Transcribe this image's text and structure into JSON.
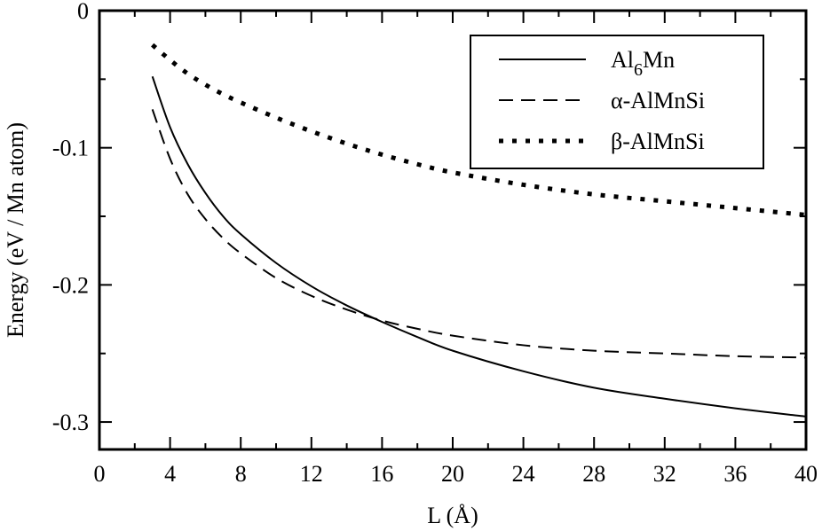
{
  "chart_data": {
    "type": "line",
    "xlabel": "L (Å)",
    "ylabel": "Energy (eV / Mn atom)",
    "xlim": [
      0,
      40
    ],
    "ylim": [
      -0.32,
      0
    ],
    "x_ticks": [
      0,
      4,
      8,
      12,
      16,
      20,
      24,
      28,
      32,
      36,
      40
    ],
    "x_tick_labels": [
      "0",
      "4",
      "8",
      "12",
      "16",
      "20",
      "24",
      "28",
      "32",
      "36",
      "40"
    ],
    "y_ticks": [
      0,
      -0.1,
      -0.2,
      -0.3
    ],
    "y_tick_labels": [
      "0",
      "-0.1",
      "-0.2",
      "-0.3"
    ],
    "x_minor_step": 2,
    "y_minor_step": 0.05,
    "grid": false,
    "legend_position": "top-right",
    "series": [
      {
        "name_parts": [
          "Al",
          "6",
          "Mn"
        ],
        "style": "solid",
        "x": [
          3,
          4,
          5,
          6,
          7,
          8,
          10,
          12,
          14,
          16,
          18,
          20,
          24,
          28,
          32,
          36,
          40
        ],
        "y": [
          -0.048,
          -0.085,
          -0.112,
          -0.133,
          -0.15,
          -0.163,
          -0.184,
          -0.201,
          -0.215,
          -0.227,
          -0.238,
          -0.248,
          -0.263,
          -0.275,
          -0.283,
          -0.29,
          -0.296
        ]
      },
      {
        "name_parts": [
          "α-AlMnSi"
        ],
        "style": "dashed",
        "x": [
          3,
          4,
          5,
          6,
          7,
          8,
          10,
          12,
          14,
          16,
          18,
          20,
          24,
          28,
          32,
          36,
          40
        ],
        "y": [
          -0.072,
          -0.108,
          -0.134,
          -0.152,
          -0.166,
          -0.177,
          -0.195,
          -0.208,
          -0.218,
          -0.226,
          -0.232,
          -0.237,
          -0.244,
          -0.248,
          -0.25,
          -0.252,
          -0.253
        ]
      },
      {
        "name_parts": [
          "β-AlMnSi"
        ],
        "style": "dotted",
        "x": [
          3,
          4,
          5,
          6,
          7,
          8,
          10,
          12,
          14,
          16,
          18,
          20,
          24,
          28,
          32,
          36,
          40
        ],
        "y": [
          -0.025,
          -0.036,
          -0.046,
          -0.054,
          -0.061,
          -0.067,
          -0.078,
          -0.088,
          -0.097,
          -0.105,
          -0.112,
          -0.118,
          -0.127,
          -0.134,
          -0.139,
          -0.144,
          -0.149
        ]
      }
    ]
  }
}
